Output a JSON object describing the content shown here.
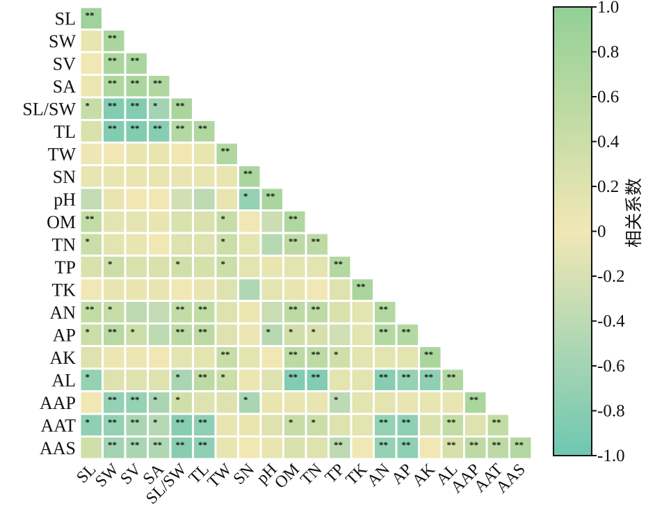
{
  "chart_data": {
    "type": "heatmap",
    "labels": [
      "SL",
      "SW",
      "SV",
      "SA",
      "SL/SW",
      "TL",
      "TW",
      "SN",
      "pH",
      "OM",
      "TN",
      "TP",
      "TK",
      "AN",
      "AP",
      "AK",
      "AL",
      "AAP",
      "AAT",
      "AAS"
    ],
    "matrix": [
      [
        0.85
      ],
      [
        0.1,
        0.75
      ],
      [
        0.0,
        0.75,
        0.75
      ],
      [
        0.05,
        0.7,
        0.75,
        0.7
      ],
      [
        0.45,
        -0.85,
        -0.85,
        -0.6,
        0.75
      ],
      [
        0.25,
        -0.85,
        -0.85,
        -0.8,
        0.65,
        0.7
      ],
      [
        -0.02,
        0.0,
        0.1,
        0.1,
        0.0,
        0.1,
        0.7
      ],
      [
        0.1,
        0.1,
        0.1,
        0.1,
        0.1,
        0.1,
        0.1,
        0.75
      ],
      [
        -0.35,
        0.1,
        0.0,
        0.0,
        -0.25,
        -0.4,
        0.1,
        -0.7,
        0.75
      ],
      [
        0.5,
        0.15,
        0.15,
        0.1,
        0.25,
        0.25,
        0.45,
        0.0,
        -0.3,
        0.7
      ],
      [
        0.4,
        0.15,
        0.1,
        0.0,
        0.2,
        0.2,
        0.4,
        0.15,
        -0.45,
        0.55,
        0.55
      ],
      [
        0.25,
        0.4,
        0.25,
        0.25,
        0.35,
        0.3,
        0.4,
        0.15,
        0.1,
        0.15,
        0.15,
        0.65
      ],
      [
        0.0,
        0.1,
        0.1,
        0.1,
        0.0,
        0.1,
        0.2,
        -0.5,
        0.15,
        0.1,
        0.0,
        0.2,
        0.75
      ],
      [
        0.5,
        0.45,
        -0.4,
        -0.35,
        0.5,
        0.5,
        0.2,
        0.05,
        -0.3,
        0.55,
        0.55,
        0.25,
        0.15,
        0.65
      ],
      [
        0.4,
        0.6,
        0.4,
        -0.4,
        0.55,
        0.55,
        0.2,
        0.05,
        -0.45,
        0.35,
        0.3,
        -0.25,
        0.15,
        0.65,
        0.65
      ],
      [
        0.2,
        0.05,
        0.05,
        0.0,
        0.15,
        0.15,
        0.45,
        0.15,
        0.0,
        0.55,
        0.55,
        0.35,
        0.15,
        0.15,
        0.15,
        0.75
      ],
      [
        -0.7,
        0.2,
        0.2,
        0.2,
        -0.55,
        0.55,
        0.4,
        0.05,
        0.2,
        -0.85,
        -0.85,
        0.15,
        0.15,
        -0.8,
        -0.7,
        -0.75,
        0.7
      ],
      [
        0.0,
        -0.7,
        -0.7,
        -0.55,
        0.35,
        0.2,
        0.2,
        -0.55,
        0.1,
        0.1,
        0.1,
        -0.4,
        0.15,
        0.15,
        0.1,
        0.1,
        0.1,
        0.75
      ],
      [
        -0.75,
        -0.7,
        -0.55,
        -0.45,
        -0.8,
        -0.75,
        0.1,
        0.1,
        0.2,
        0.45,
        0.4,
        0.2,
        0.15,
        -0.7,
        -0.75,
        0.25,
        0.5,
        0.2,
        0.5
      ],
      [
        0.35,
        -0.6,
        -0.55,
        -0.5,
        -0.8,
        -0.75,
        0.1,
        0.0,
        0.1,
        0.25,
        0.2,
        -0.4,
        0.0,
        -0.7,
        -0.75,
        0.0,
        0.3,
        0.55,
        0.55,
        0.65
      ]
    ],
    "significance": [
      [
        "**"
      ],
      [
        "",
        "**"
      ],
      [
        "",
        "**",
        "**"
      ],
      [
        "",
        "**",
        "**",
        "**"
      ],
      [
        "*",
        "**",
        "**",
        "*",
        "**"
      ],
      [
        "",
        "**",
        "**",
        "**",
        "**",
        "**"
      ],
      [
        "",
        "",
        "",
        "",
        "",
        "",
        "**"
      ],
      [
        "",
        "",
        "",
        "",
        "",
        "",
        "",
        "**"
      ],
      [
        "",
        "",
        "",
        "",
        "",
        "",
        "",
        "*",
        "**"
      ],
      [
        "**",
        "",
        "",
        "",
        "",
        "",
        "*",
        "",
        "",
        "**"
      ],
      [
        "*",
        "",
        "",
        "",
        "",
        "",
        "*",
        "",
        "",
        "**",
        "**"
      ],
      [
        "",
        "*",
        "",
        "",
        "*",
        "",
        "*",
        "",
        "",
        "",
        "",
        "**"
      ],
      [
        "",
        "",
        "",
        "",
        "",
        "",
        "",
        "",
        "",
        "",
        "",
        "",
        "**"
      ],
      [
        "**",
        "*",
        "",
        "",
        "**",
        "**",
        "",
        "",
        "",
        "**",
        "**",
        "",
        "",
        "**"
      ],
      [
        "*",
        "**",
        "*",
        "",
        "**",
        "**",
        "",
        "",
        "*",
        "*",
        "*",
        "",
        "",
        "**",
        "**"
      ],
      [
        "",
        "",
        "",
        "",
        "",
        "",
        "**",
        "",
        "",
        "**",
        "**",
        "*",
        "",
        "",
        "",
        "**"
      ],
      [
        "*",
        "",
        "",
        "",
        "*",
        "**",
        "*",
        "",
        "",
        "**",
        "**",
        "",
        "",
        "**",
        "**",
        "**",
        "**"
      ],
      [
        "",
        "**",
        "**",
        "*",
        "*",
        "",
        "",
        "*",
        "",
        "",
        "",
        "*",
        "",
        "",
        "",
        "",
        "",
        "**"
      ],
      [
        "*",
        "**",
        "**",
        "*",
        "**",
        "**",
        "",
        "",
        "",
        "*",
        "*",
        "",
        "",
        "**",
        "**",
        "",
        "**",
        "",
        "**"
      ],
      [
        "",
        "**",
        "**",
        "**",
        "**",
        "**",
        "",
        "",
        "",
        "",
        "",
        "**",
        "",
        "**",
        "**",
        "",
        "**",
        "**",
        "**",
        "**"
      ]
    ],
    "colorbar": {
      "title": "相关系数",
      "range": [
        -1,
        1
      ],
      "ticks": [
        "1.0",
        "0.8",
        "0.6",
        "0.4",
        "0.2",
        "0",
        "-0.2",
        "-0.4",
        "-0.6",
        "-0.8",
        "-1.0"
      ],
      "colors": {
        "positive": "#92d096",
        "zero": "#f1e7b4",
        "negative": "#6ec7b2"
      }
    }
  }
}
